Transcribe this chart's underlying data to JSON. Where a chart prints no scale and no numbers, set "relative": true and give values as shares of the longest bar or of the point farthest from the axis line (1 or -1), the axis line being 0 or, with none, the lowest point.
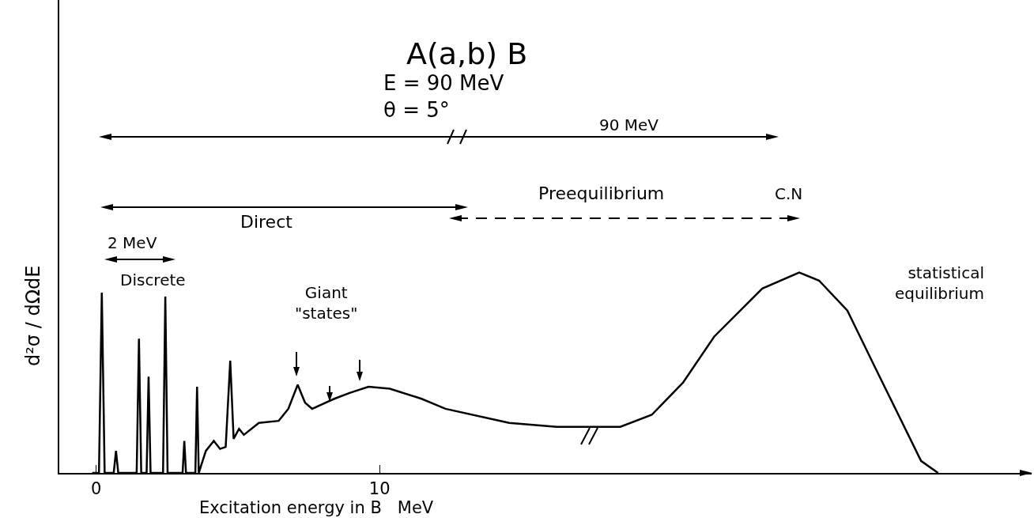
{
  "chart_data": {
    "type": "line",
    "title": "A(a,b) B",
    "subtitle": "E = 90 MeV\nθ = 5°",
    "xlabel": "Excitation energy in B   MeV",
    "ylabel": "d²σ / dΩdE",
    "annotations": [
      "90 MeV",
      "Preequilibrium",
      "C.N",
      "Direct",
      "2 MeV",
      "Discrete",
      "Giant\n\"states\"",
      "statistical\nequilibrium"
    ],
    "relative": true,
    "color": "#000000",
    "xlim": [
      -1.3,
      33
    ],
    "xticks": [
      0,
      10
    ],
    "x": [
      -0.14,
      0.1,
      0.2,
      0.3,
      0.62,
      0.7,
      0.78,
      1.43,
      1.51,
      1.59,
      1.78,
      1.85,
      1.92,
      2.36,
      2.44,
      2.52,
      3.05,
      3.11,
      3.17,
      3.5,
      3.56,
      3.62,
      3.87,
      4.15,
      4.37,
      4.57,
      4.73,
      4.85,
      5.04,
      5.21,
      5.74,
      6.44,
      6.78,
      7.11,
      7.37,
      7.62,
      8.4,
      8.96,
      9.61,
      10.36,
      11.48,
      12.32,
      14.57,
      16.25,
      18.49,
      19.6,
      20.7,
      21.8,
      23.5,
      24.8,
      25.5,
      26.5,
      27.5,
      28.3,
      29.1,
      29.7
    ],
    "values": [
      0,
      0,
      0.9,
      0,
      0,
      0.11,
      0,
      0,
      0.67,
      0,
      0,
      0.48,
      0,
      0,
      0.88,
      0,
      0,
      0.16,
      0,
      0,
      0.43,
      0,
      0.11,
      0.16,
      0.12,
      0.13,
      0.56,
      0.17,
      0.22,
      0.19,
      0.25,
      0.26,
      0.32,
      0.44,
      0.35,
      0.32,
      0.37,
      0.4,
      0.43,
      0.42,
      0.37,
      0.32,
      0.25,
      0.23,
      0.23,
      0.29,
      0.45,
      0.68,
      0.92,
      1,
      0.96,
      0.81,
      0.52,
      0.29,
      0.06,
      0
    ]
  }
}
